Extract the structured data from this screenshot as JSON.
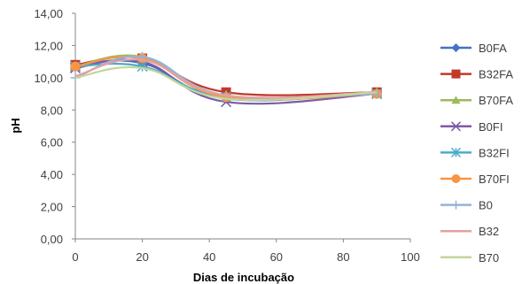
{
  "chart_data": {
    "type": "line",
    "title": "",
    "xlabel": "Dias de incubação",
    "ylabel": "pH",
    "xlim": [
      0,
      100
    ],
    "ylim": [
      0,
      14
    ],
    "x_ticks": [
      "0",
      "20",
      "40",
      "60",
      "80",
      "100"
    ],
    "y_ticks": [
      "0,00",
      "2,00",
      "4,00",
      "6,00",
      "8,00",
      "10,00",
      "12,00",
      "14,00"
    ],
    "grid": false,
    "legend_position": "right",
    "x": [
      0,
      20,
      45,
      90
    ],
    "series": [
      {
        "name": "B0FA",
        "values": [
          10.8,
          10.9,
          8.7,
          9.1
        ],
        "color": "#4472c4",
        "marker": "diamond"
      },
      {
        "name": "B32FA",
        "values": [
          10.8,
          11.2,
          9.1,
          9.1
        ],
        "color": "#c0392b",
        "marker": "square"
      },
      {
        "name": "B70FA",
        "values": [
          10.7,
          11.3,
          8.9,
          9.1
        ],
        "color": "#9bbb59",
        "marker": "triangle"
      },
      {
        "name": "B0FI",
        "values": [
          10.6,
          11.0,
          8.5,
          9.0
        ],
        "color": "#7d5aa6",
        "marker": "x"
      },
      {
        "name": "B32FI",
        "values": [
          10.7,
          10.7,
          8.8,
          9.0
        ],
        "color": "#4bacc6",
        "marker": "star"
      },
      {
        "name": "B70FI",
        "values": [
          10.7,
          11.2,
          8.8,
          9.0
        ],
        "color": "#f79646",
        "marker": "circle"
      },
      {
        "name": "B0",
        "values": [
          10.0,
          11.3,
          8.9,
          9.0
        ],
        "color": "#95b3d7",
        "marker": "plus"
      },
      {
        "name": "B32",
        "values": [
          10.1,
          11.1,
          8.9,
          9.1
        ],
        "color": "#e6a0a0",
        "marker": "none"
      },
      {
        "name": "B70",
        "values": [
          10.0,
          10.6,
          8.7,
          9.1
        ],
        "color": "#c3d69b",
        "marker": "none"
      }
    ]
  }
}
